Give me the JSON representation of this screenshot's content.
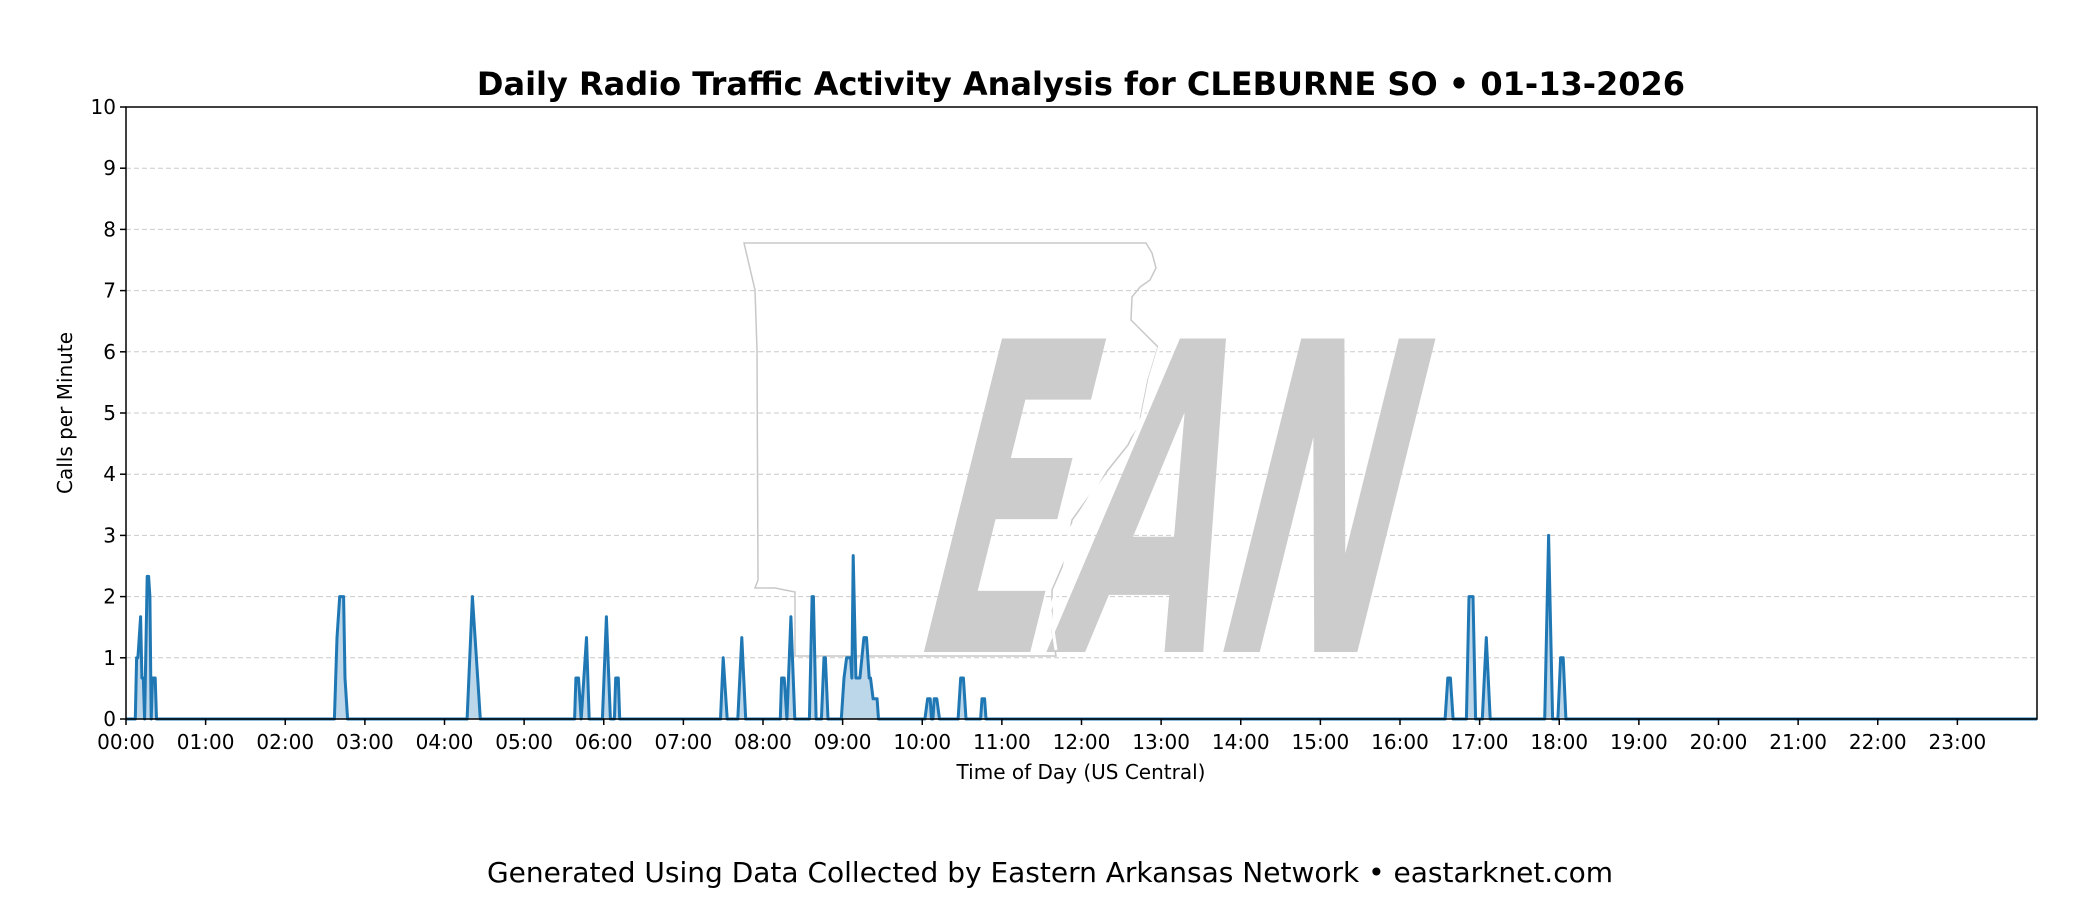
{
  "chart_data": {
    "type": "area",
    "title": "Daily Radio Traffic Activity Analysis for CLEBURNE SO • 01-13-2026",
    "xlabel": "Time of Day (US Central)",
    "ylabel": "Calls per Minute",
    "ylim": [
      0,
      10
    ],
    "yticks": [
      "0",
      "1",
      "2",
      "3",
      "4",
      "5",
      "6",
      "7",
      "8",
      "9",
      "10"
    ],
    "xlim": [
      "00:00",
      "24:00"
    ],
    "xticks": [
      "00:00",
      "01:00",
      "02:00",
      "03:00",
      "04:00",
      "05:00",
      "06:00",
      "07:00",
      "08:00",
      "09:00",
      "10:00",
      "11:00",
      "12:00",
      "13:00",
      "14:00",
      "15:00",
      "16:00",
      "17:00",
      "18:00",
      "19:00",
      "20:00",
      "21:00",
      "22:00",
      "23:00"
    ],
    "grid": "horizontal dashed",
    "line_color": "#1f77b4",
    "fill_color": "#a6c8e3",
    "points": [
      [
        "00:00",
        0
      ],
      [
        "00:07",
        0
      ],
      [
        "00:08",
        1
      ],
      [
        "00:09",
        1
      ],
      [
        "00:11",
        1.67
      ],
      [
        "00:12",
        0.67
      ],
      [
        "00:13",
        0.67
      ],
      [
        "00:14",
        0
      ],
      [
        "00:16",
        2.33
      ],
      [
        "00:17",
        2.33
      ],
      [
        "00:18",
        2
      ],
      [
        "00:19",
        0
      ],
      [
        "00:20",
        0.67
      ],
      [
        "00:22",
        0.67
      ],
      [
        "00:23",
        0
      ],
      [
        "02:37",
        0
      ],
      [
        "02:39",
        1.33
      ],
      [
        "02:41",
        2
      ],
      [
        "02:44",
        2
      ],
      [
        "02:45",
        0.67
      ],
      [
        "02:47",
        0
      ],
      [
        "04:17",
        0
      ],
      [
        "04:21",
        2
      ],
      [
        "04:25",
        0.67
      ],
      [
        "04:27",
        0
      ],
      [
        "05:38",
        0
      ],
      [
        "05:39",
        0.67
      ],
      [
        "05:41",
        0.67
      ],
      [
        "05:43",
        0
      ],
      [
        "05:47",
        1.33
      ],
      [
        "05:49",
        0
      ],
      [
        "05:59",
        0
      ],
      [
        "06:02",
        1.67
      ],
      [
        "06:05",
        0
      ],
      [
        "06:08",
        0
      ],
      [
        "06:09",
        0.67
      ],
      [
        "06:11",
        0.67
      ],
      [
        "06:12",
        0
      ],
      [
        "07:28",
        0
      ],
      [
        "07:30",
        1
      ],
      [
        "07:33",
        0
      ],
      [
        "07:41",
        0
      ],
      [
        "07:44",
        1.33
      ],
      [
        "07:47",
        0
      ],
      [
        "08:13",
        0
      ],
      [
        "08:14",
        0.67
      ],
      [
        "08:16",
        0.67
      ],
      [
        "08:18",
        0
      ],
      [
        "08:21",
        1.67
      ],
      [
        "08:24",
        0
      ],
      [
        "08:35",
        0
      ],
      [
        "08:37",
        2
      ],
      [
        "08:38",
        2
      ],
      [
        "08:40",
        0
      ],
      [
        "08:44",
        0
      ],
      [
        "08:46",
        1
      ],
      [
        "08:47",
        1
      ],
      [
        "08:49",
        0
      ],
      [
        "08:59",
        0
      ],
      [
        "09:01",
        0.67
      ],
      [
        "09:03",
        1
      ],
      [
        "09:06",
        1
      ],
      [
        "09:07",
        0.67
      ],
      [
        "09:08",
        2.67
      ],
      [
        "09:10",
        0.67
      ],
      [
        "09:13",
        0.67
      ],
      [
        "09:16",
        1.33
      ],
      [
        "09:18",
        1.33
      ],
      [
        "09:20",
        0.67
      ],
      [
        "09:21",
        0.67
      ],
      [
        "09:23",
        0.33
      ],
      [
        "09:26",
        0.33
      ],
      [
        "09:27",
        0
      ],
      [
        "10:02",
        0
      ],
      [
        "10:04",
        0.33
      ],
      [
        "10:06",
        0.33
      ],
      [
        "10:07",
        0
      ],
      [
        "10:08",
        0
      ],
      [
        "10:09",
        0.33
      ],
      [
        "10:11",
        0.33
      ],
      [
        "10:13",
        0
      ],
      [
        "10:27",
        0
      ],
      [
        "10:29",
        0.67
      ],
      [
        "10:31",
        0.67
      ],
      [
        "10:33",
        0
      ],
      [
        "10:44",
        0
      ],
      [
        "10:45",
        0.33
      ],
      [
        "10:47",
        0.33
      ],
      [
        "10:48",
        0
      ],
      [
        "16:34",
        0
      ],
      [
        "16:36",
        0.67
      ],
      [
        "16:38",
        0.67
      ],
      [
        "16:40",
        0
      ],
      [
        "16:50",
        0
      ],
      [
        "16:52",
        2
      ],
      [
        "16:55",
        2
      ],
      [
        "16:57",
        0
      ],
      [
        "17:02",
        0
      ],
      [
        "17:05",
        1.33
      ],
      [
        "17:08",
        0
      ],
      [
        "17:49",
        0
      ],
      [
        "17:52",
        3
      ],
      [
        "17:55",
        0
      ],
      [
        "17:59",
        0
      ],
      [
        "18:01",
        1
      ],
      [
        "18:03",
        1
      ],
      [
        "18:05",
        0
      ],
      [
        "24:00",
        0
      ]
    ]
  },
  "watermark": {
    "logo_text": "EAN",
    "color": "#cccccc"
  },
  "footer": "Generated Using Data Collected by Eastern Arkansas Network • eastarknet.com"
}
